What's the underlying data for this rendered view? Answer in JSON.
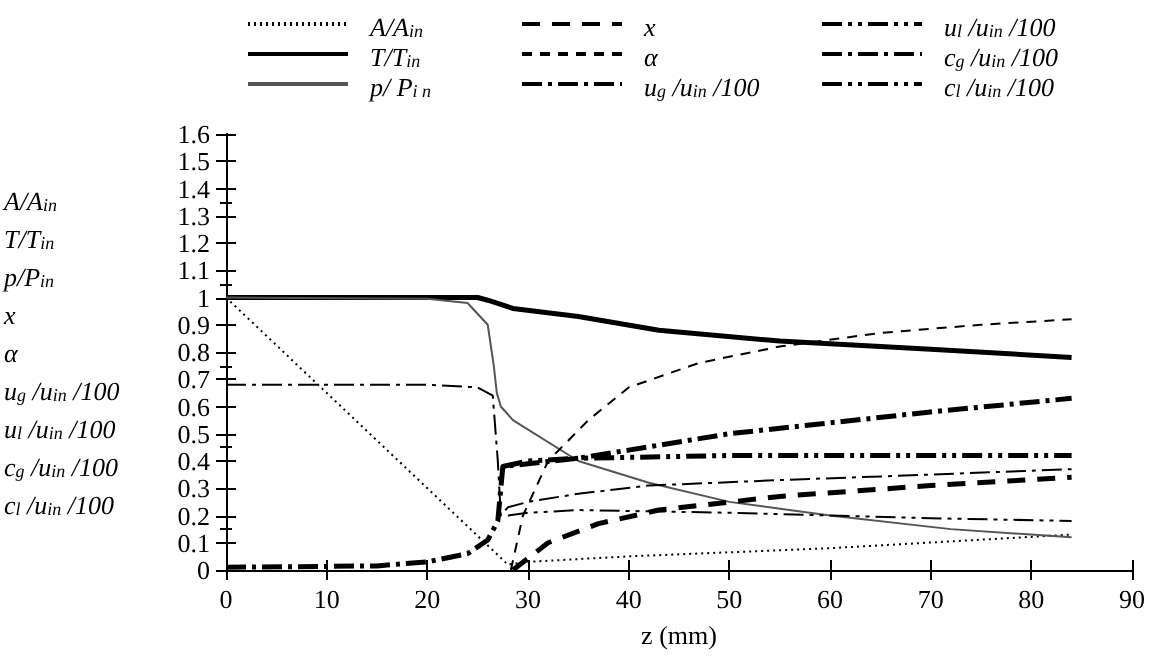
{
  "chart_data": {
    "type": "line",
    "xlabel": "z (mm)",
    "ylabel": "A/A$_{in}$\nT/T$_{in}$\np/P$_{in}$\nx\nα\nu$_{g}$ /u$_{in}$ /100\nu$_{l}$ /u$_{in}$ /100\nc$_{g}$ /u$_{in}$ /100\nc$_{l}$ /u$_{in}$ /100",
    "xlim": [
      0,
      90
    ],
    "xticks": [
      0,
      10,
      20,
      30,
      40,
      50,
      60,
      70,
      80,
      90
    ],
    "ylim": [
      0,
      1.6
    ],
    "yticks": [
      0,
      0.1,
      0.2,
      0.3,
      0.4,
      0.5,
      0.6,
      0.7,
      0.8,
      0.9,
      1,
      1.1,
      1.2,
      1.3,
      1.4,
      1.5,
      1.6
    ],
    "grid": false,
    "legend": "top",
    "marker": "none",
    "series": [
      {
        "name": "A/A$_{in}$",
        "color": "#000000",
        "line_style": "dotted",
        "x": [
          0,
          28,
          30,
          40,
          60,
          84
        ],
        "values": [
          1,
          0.02,
          0.03,
          0.05,
          0.08,
          0.13
        ]
      },
      {
        "name": "T/T$_{in}$",
        "color": "#000000",
        "line_style": "solid",
        "x": [
          0,
          25,
          26,
          28.5,
          35,
          43,
          55,
          70,
          84
        ],
        "values": [
          1,
          1,
          0.99,
          0.96,
          0.93,
          0.88,
          0.84,
          0.81,
          0.78
        ]
      },
      {
        "name": "p/ P$_{i n}$",
        "color": "#555555",
        "line_style": "solid",
        "x": [
          0,
          20,
          24,
          26,
          26.6,
          26.9,
          27.3,
          28.5,
          35,
          42,
          50,
          60,
          72,
          84
        ],
        "values": [
          1,
          0.995,
          0.98,
          0.9,
          0.75,
          0.65,
          0.6,
          0.55,
          0.4,
          0.32,
          0.25,
          0.2,
          0.15,
          0.12
        ]
      },
      {
        "name": "x",
        "color": "#000000",
        "line_style": "dashed",
        "x": [
          28.5,
          32,
          37,
          43,
          55,
          70,
          84
        ],
        "values": [
          0,
          0.1,
          0.17,
          0.22,
          0.27,
          0.31,
          0.34
        ]
      },
      {
        "name": "α",
        "color": "#000000",
        "line_style": "dashed",
        "x": [
          28.3,
          29.5,
          32,
          36,
          40,
          47,
          55,
          65,
          75,
          84
        ],
        "values": [
          0,
          0.2,
          0.4,
          0.55,
          0.67,
          0.76,
          0.82,
          0.87,
          0.9,
          0.92
        ]
      },
      {
        "name": "u$_{g}$ /u$_{in}$ /100",
        "color": "#000000",
        "line_style": "dashdot",
        "x": [
          0,
          15,
          20,
          24,
          26,
          27,
          27.5,
          30,
          35,
          40,
          50,
          60,
          70,
          84
        ],
        "values": [
          0.01,
          0.015,
          0.03,
          0.06,
          0.11,
          0.18,
          0.38,
          0.39,
          0.41,
          0.44,
          0.5,
          0.54,
          0.58,
          0.63
        ]
      },
      {
        "name": "u$_{l}$ /u$_{in}$ /100",
        "color": "#000000",
        "line_style": "dashdotdot",
        "x": [
          27.5,
          30,
          35,
          50,
          84
        ],
        "values": [
          0.38,
          0.4,
          0.41,
          0.42,
          0.42
        ]
      },
      {
        "name": "c$_{g}$ /u$_{in}$ /100",
        "color": "#000000",
        "line_style": "dashdot",
        "x": [
          0,
          20,
          25,
          26.5,
          27,
          27.3,
          28,
          30,
          35,
          42,
          55,
          70,
          84
        ],
        "values": [
          0.68,
          0.68,
          0.67,
          0.64,
          0.4,
          0.2,
          0.23,
          0.25,
          0.28,
          0.31,
          0.33,
          0.35,
          0.37
        ]
      },
      {
        "name": "c$_{l}$ /u$_{in}$ /100",
        "color": "#000000",
        "line_style": "dashdotdot",
        "x": [
          28,
          30,
          35,
          50,
          70,
          84
        ],
        "values": [
          0.2,
          0.21,
          0.22,
          0.21,
          0.19,
          0.18
        ]
      }
    ]
  }
}
